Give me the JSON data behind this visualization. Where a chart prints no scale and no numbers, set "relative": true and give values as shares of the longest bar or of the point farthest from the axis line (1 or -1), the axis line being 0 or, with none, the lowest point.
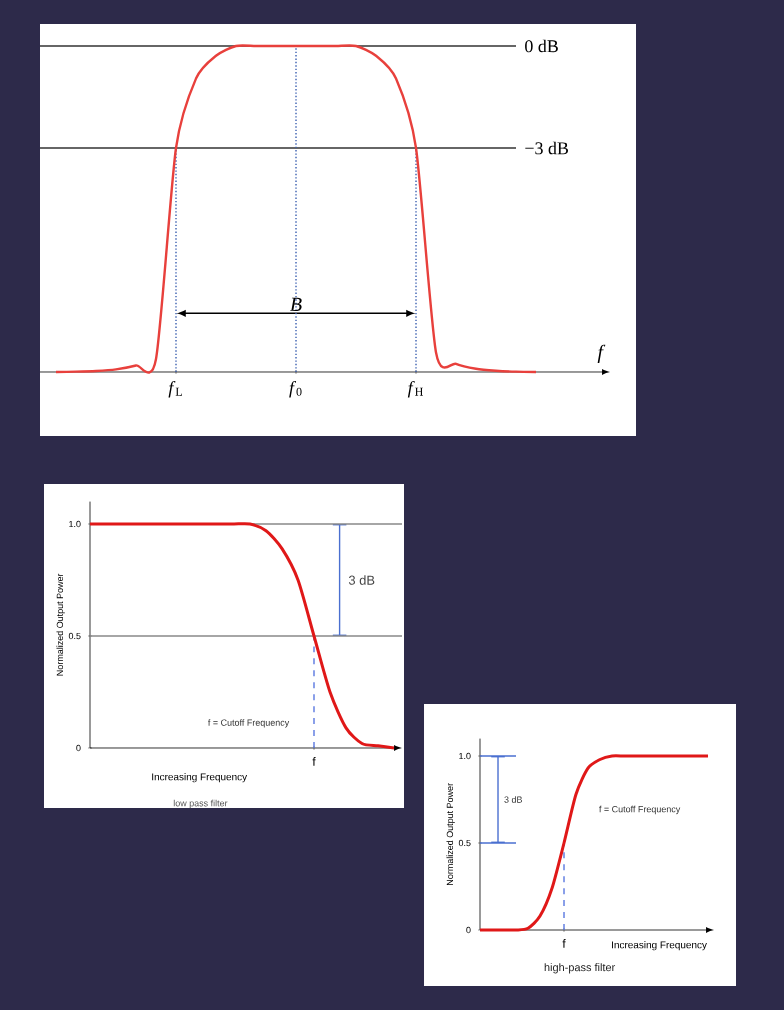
{
  "chart_data": [
    {
      "type": "line",
      "relative": true,
      "xlabel": "f",
      "categories": [
        null,
        null,
        null,
        null,
        null,
        null,
        "*f*$_{L}$",
        null,
        null,
        null,
        null,
        null,
        "*f*$_{0}$",
        null,
        null,
        null,
        null,
        null,
        "*f*$_{H}$",
        null,
        null,
        null,
        null,
        null,
        null
      ],
      "series": [
        {
          "color": "#e8403c",
          "values": [
            0,
            0.001,
            0.003,
            0.008,
            0.02,
            0.04,
            0.687,
            0.9,
            0.97,
            1,
            1,
            1,
            1,
            1,
            1,
            1,
            0.97,
            0.9,
            0.687,
            0.06,
            0.025,
            0.01,
            0.004,
            0.001,
            0
          ]
        }
      ],
      "ref_lines": [
        {
          "axis": "y",
          "value": 1,
          "label": "0 dB",
          "color": "#333333"
        },
        {
          "axis": "y",
          "value": 0.687,
          "label": "−3 dB",
          "color": "#333333"
        },
        {
          "axis": "x",
          "value": "*f*$_{L}$",
          "color": "#3a5fb0",
          "line_style": "dotted"
        },
        {
          "axis": "x",
          "value": "*f*$_{0}$",
          "color": "#3a5fb0",
          "line_style": "dotted"
        },
        {
          "axis": "x",
          "value": "*f*$_{H}$",
          "color": "#3a5fb0",
          "line_style": "dotted"
        }
      ],
      "annotations": [
        "B"
      ]
    },
    {
      "type": "line",
      "xlabel": "Increasing Frequency",
      "ylabel": "Normalized Output Power",
      "categories": [
        null,
        null,
        null,
        null,
        null,
        null,
        null,
        null,
        null,
        null,
        null,
        null,
        null,
        null,
        "f",
        null,
        null,
        null,
        null,
        null
      ],
      "ylim": [
        0,
        1.1
      ],
      "yticks": [
        0,
        0.5,
        {
          "value": 1,
          "label": "1.0"
        }
      ],
      "series": [
        {
          "color": "#e01818",
          "values": [
            1,
            1,
            1,
            1,
            1,
            1,
            1,
            1,
            1,
            1,
            1,
            0.97,
            0.89,
            0.75,
            0.5,
            0.25,
            0.09,
            0.02,
            0.01,
            0
          ]
        }
      ],
      "ref_lines": [
        {
          "axis": "y",
          "value": 1,
          "color": "#888888"
        },
        {
          "axis": "y",
          "value": 0.5,
          "color": "#888888"
        },
        {
          "axis": "x",
          "value": "f",
          "color": "#5a78e0",
          "line_style": "dashed"
        }
      ],
      "annotations": [
        "3 dB",
        "f = Cutoff Frequency",
        "low pass filter"
      ]
    },
    {
      "type": "line",
      "xlabel": "Increasing Frequency",
      "ylabel": "Normalized Output Power",
      "categories": [
        null,
        null,
        null,
        null,
        null,
        null,
        null,
        "f",
        null,
        null,
        null,
        null,
        null,
        null,
        null,
        null,
        null,
        null,
        null,
        null
      ],
      "ylim": [
        0,
        1.1
      ],
      "yticks": [
        0,
        0.5,
        {
          "value": 1,
          "label": "1.0"
        }
      ],
      "series": [
        {
          "color": "#e01818",
          "values": [
            0,
            0,
            0,
            0,
            0.01,
            0.08,
            0.24,
            0.5,
            0.78,
            0.93,
            0.98,
            1,
            1,
            1,
            1,
            1,
            1,
            1,
            1,
            1
          ]
        }
      ],
      "ref_lines": [
        {
          "axis": "y",
          "value": 1,
          "color": "#4a6fd0"
        },
        {
          "axis": "y",
          "value": 0.5,
          "color": "#4a6fd0"
        },
        {
          "axis": "x",
          "value": "f",
          "color": "#5a78e0",
          "line_style": "dashed"
        }
      ],
      "annotations": [
        "3 dB",
        "f = Cutoff Frequency",
        "high-pass filter"
      ]
    }
  ]
}
